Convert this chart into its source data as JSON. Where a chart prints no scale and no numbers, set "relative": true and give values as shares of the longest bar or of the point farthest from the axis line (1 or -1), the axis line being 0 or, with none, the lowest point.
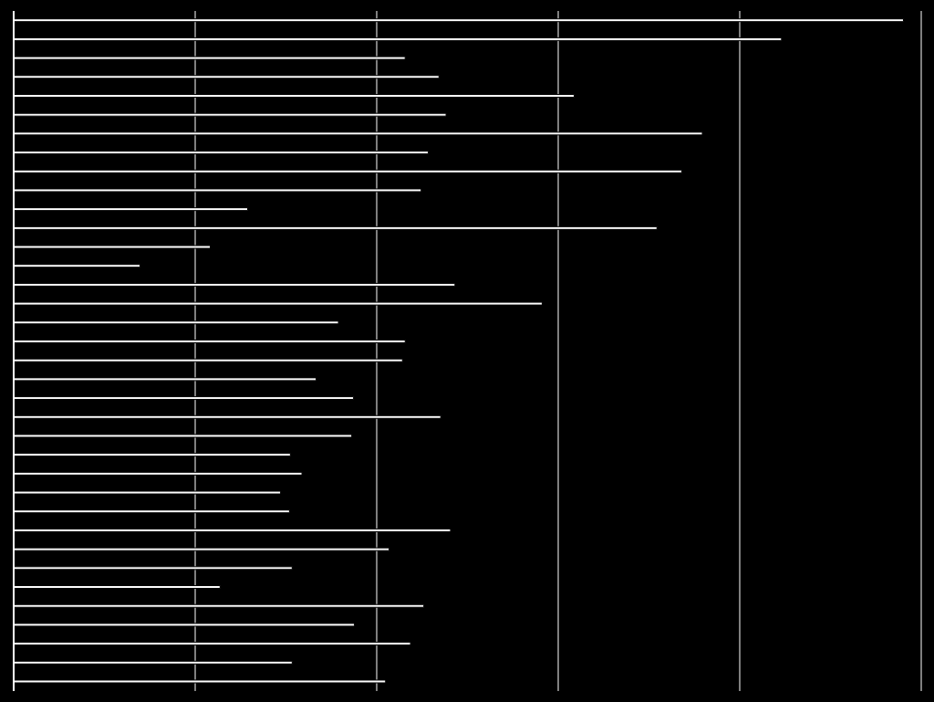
{
  "chart_data": {
    "type": "bar",
    "orientation": "horizontal",
    "relative": true,
    "grid": "x",
    "color": "#ffffff",
    "categories": [
      null,
      null,
      null,
      null,
      null,
      null,
      null,
      null,
      null,
      null,
      null,
      null,
      null,
      null,
      null,
      null,
      null,
      null,
      null,
      null,
      null,
      null,
      null,
      null,
      null,
      null,
      null,
      null,
      null,
      null,
      null,
      null,
      null,
      null,
      null,
      null
    ],
    "values": [
      1,
      0.863,
      0.44,
      0.478,
      0.63,
      0.486,
      0.774,
      0.466,
      0.751,
      0.458,
      0.263,
      0.723,
      0.221,
      0.142,
      0.496,
      0.594,
      0.365,
      0.44,
      0.437,
      0.34,
      0.382,
      0.48,
      0.38,
      0.311,
      0.324,
      0.3,
      0.31,
      0.491,
      0.422,
      0.313,
      0.232,
      0.461,
      0.383,
      0.446,
      0.313,
      0.418
    ]
  }
}
